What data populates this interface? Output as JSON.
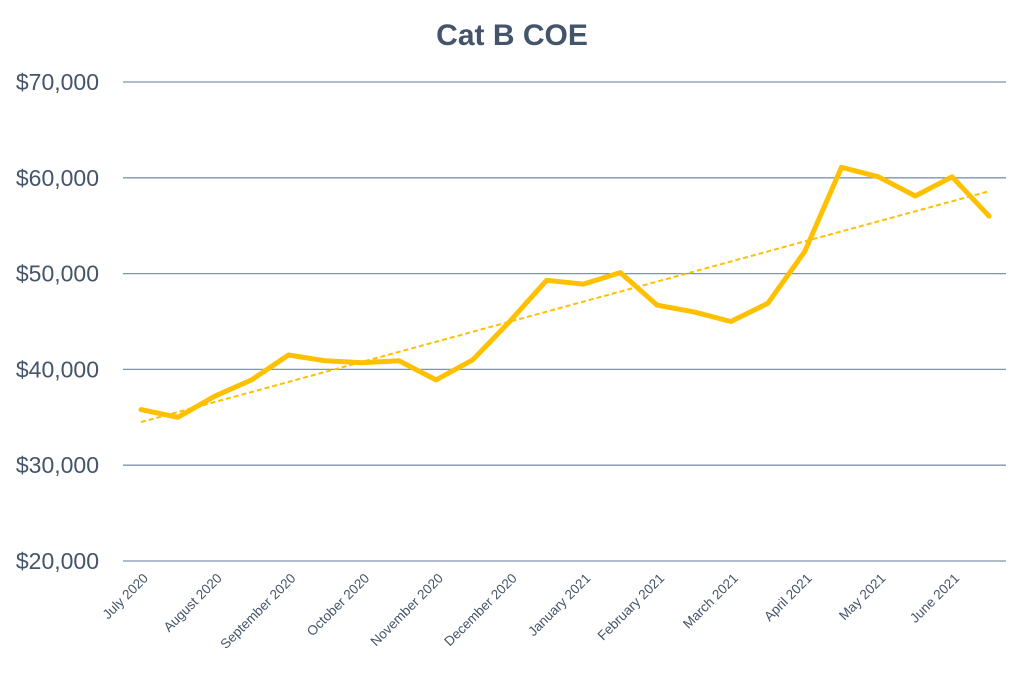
{
  "chart_data": {
    "type": "line",
    "title": "Cat B COE",
    "xlabel": "",
    "ylabel": "",
    "x_tick_labels": [
      "July 2020",
      "August 2020",
      "September 2020",
      "October 2020",
      "November 2020",
      "December 2020",
      "January 2021",
      "February 2021",
      "March 2021",
      "April 2021",
      "May 2021",
      "June 2021"
    ],
    "y_tick_labels": [
      "$20,000",
      "$30,000",
      "$40,000",
      "$50,000",
      "$60,000",
      "$70,000"
    ],
    "y_ticks": [
      20000,
      30000,
      40000,
      50000,
      60000,
      70000
    ],
    "ylim": [
      20000,
      70000
    ],
    "grid": true,
    "legend": "none",
    "series": [
      {
        "values": [
          35800,
          35000,
          37200,
          38900,
          41500,
          40900,
          40700,
          40900,
          38900,
          41000,
          45000,
          49300,
          48900,
          50100,
          46700,
          46000,
          45000,
          46900,
          52300,
          61100,
          60100,
          58100,
          60100,
          56000
        ],
        "color": "#ffc000"
      }
    ],
    "trendline": {
      "type": "linear",
      "start": 34500,
      "end": 58600,
      "color": "#ffc000",
      "style": "dashed"
    },
    "colors": {
      "gridline": "#7f95ad",
      "text": "#44546a",
      "background": "#ffffff"
    }
  }
}
